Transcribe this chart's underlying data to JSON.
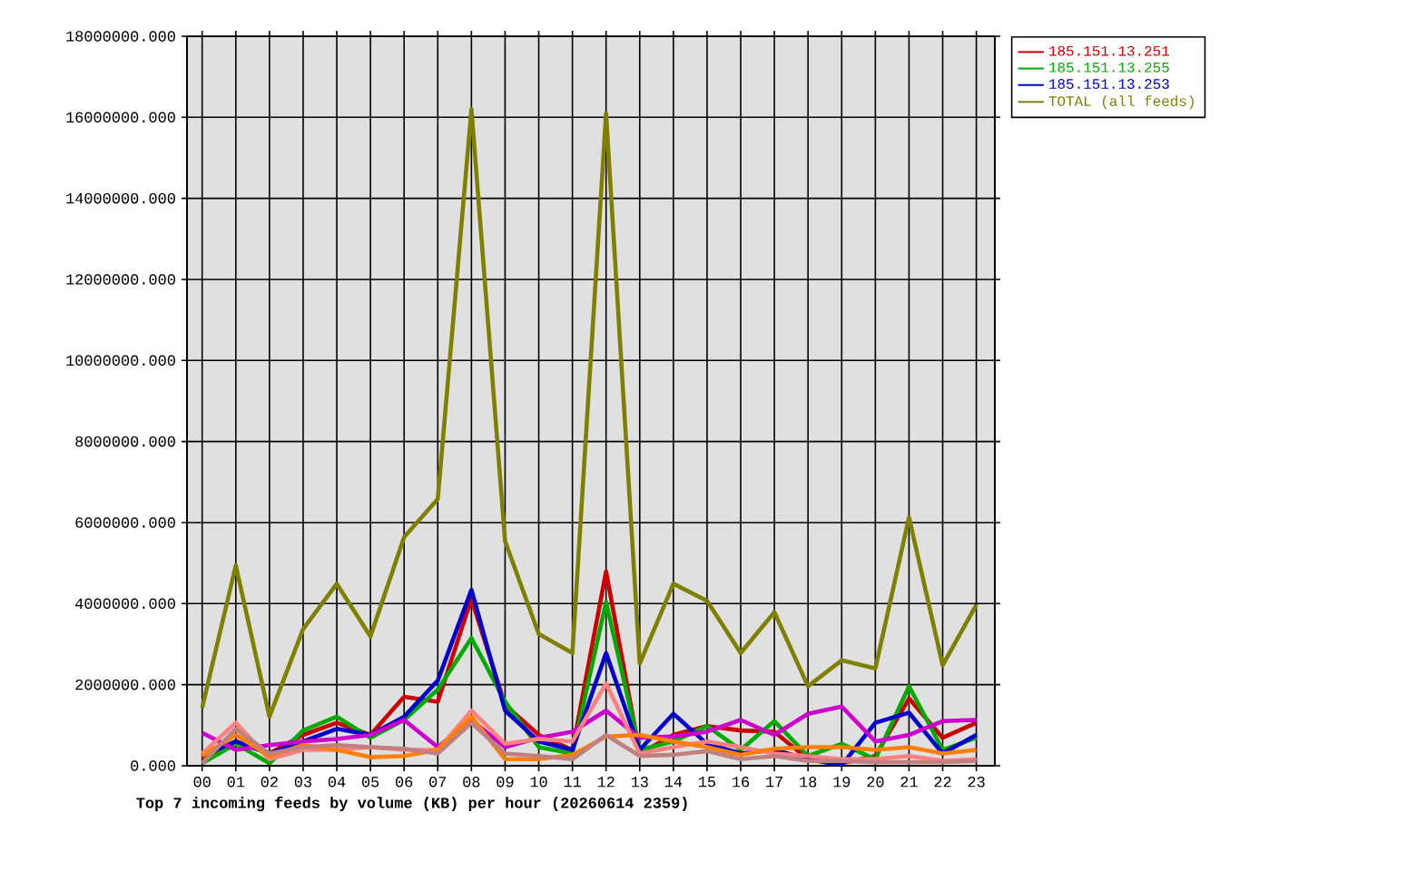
{
  "chart_data": {
    "type": "line",
    "xlabel": "Top 7 incoming feeds by volume (KB) per hour (20260614 2359)",
    "categories": [
      "00",
      "01",
      "02",
      "03",
      "04",
      "05",
      "06",
      "07",
      "08",
      "09",
      "10",
      "11",
      "12",
      "13",
      "14",
      "15",
      "16",
      "17",
      "18",
      "19",
      "20",
      "21",
      "22",
      "23"
    ],
    "ylim": [
      0,
      18000000
    ],
    "yticks": [
      {
        "value": 0,
        "label": "0.000"
      },
      {
        "value": 2000000,
        "label": "2000000.000"
      },
      {
        "value": 4000000,
        "label": "4000000.000"
      },
      {
        "value": 6000000,
        "label": "6000000.000"
      },
      {
        "value": 8000000,
        "label": "8000000.000"
      },
      {
        "value": 10000000,
        "label": "10000000.000"
      },
      {
        "value": 12000000,
        "label": "12000000.000"
      },
      {
        "value": 14000000,
        "label": "14000000.000"
      },
      {
        "value": 16000000,
        "label": "16000000.000"
      },
      {
        "value": 18000000,
        "label": "18000000.000"
      }
    ],
    "grid": true,
    "legend": "right",
    "line_style": "solid",
    "series": [
      {
        "name": "185.151.13.251",
        "color": "#cc0000",
        "values": [
          160000,
          600000,
          300000,
          760000,
          1060000,
          760000,
          1700000,
          1580000,
          4120000,
          1500000,
          760000,
          390000,
          4790000,
          300000,
          760000,
          980000,
          870000,
          840000,
          160000,
          60000,
          240000,
          1660000,
          690000,
          1060000
        ]
      },
      {
        "name": "185.151.13.255",
        "color": "#00aa00",
        "values": [
          60000,
          540000,
          60000,
          870000,
          1210000,
          690000,
          1130000,
          1880000,
          3150000,
          1580000,
          460000,
          300000,
          4040000,
          390000,
          600000,
          980000,
          390000,
          1100000,
          240000,
          540000,
          160000,
          1960000,
          390000,
          690000
        ]
      },
      {
        "name": "185.151.13.253",
        "color": "#0000cc",
        "values": [
          240000,
          600000,
          300000,
          600000,
          910000,
          760000,
          1210000,
          2100000,
          4340000,
          1360000,
          600000,
          390000,
          2780000,
          390000,
          1280000,
          540000,
          300000,
          390000,
          160000,
          10000,
          1060000,
          1310000,
          300000,
          760000
        ]
      },
      {
        "color": "#cc00cc",
        "values": [
          810000,
          390000,
          510000,
          600000,
          660000,
          760000,
          1130000,
          460000,
          1130000,
          460000,
          690000,
          840000,
          1360000,
          690000,
          720000,
          840000,
          1130000,
          760000,
          1280000,
          1460000,
          600000,
          760000,
          1100000,
          1130000
        ]
      },
      {
        "color": "#ff8080",
        "values": [
          300000,
          1060000,
          160000,
          390000,
          390000,
          460000,
          390000,
          390000,
          1360000,
          540000,
          660000,
          600000,
          2030000,
          300000,
          460000,
          600000,
          460000,
          300000,
          240000,
          160000,
          160000,
          240000,
          120000,
          160000
        ]
      },
      {
        "color": "#ff8000",
        "values": [
          240000,
          760000,
          240000,
          510000,
          390000,
          210000,
          240000,
          390000,
          1210000,
          160000,
          160000,
          270000,
          720000,
          760000,
          600000,
          460000,
          270000,
          420000,
          460000,
          460000,
          390000,
          460000,
          300000,
          390000
        ]
      },
      {
        "color": "#c08080",
        "values": [
          60000,
          910000,
          300000,
          460000,
          510000,
          460000,
          420000,
          300000,
          1060000,
          300000,
          240000,
          160000,
          760000,
          240000,
          270000,
          360000,
          160000,
          240000,
          120000,
          120000,
          90000,
          90000,
          90000,
          120000
        ]
      },
      {
        "name": "TOTAL (all feeds)",
        "color": "#808000",
        "values": [
          1430000,
          4940000,
          1210000,
          3370000,
          4490000,
          3190000,
          5640000,
          6580000,
          16200000,
          5540000,
          3250000,
          2780000,
          16100000,
          2520000,
          4490000,
          4070000,
          2780000,
          3790000,
          1960000,
          2600000,
          2400000,
          6130000,
          2480000,
          3970000
        ]
      }
    ]
  }
}
